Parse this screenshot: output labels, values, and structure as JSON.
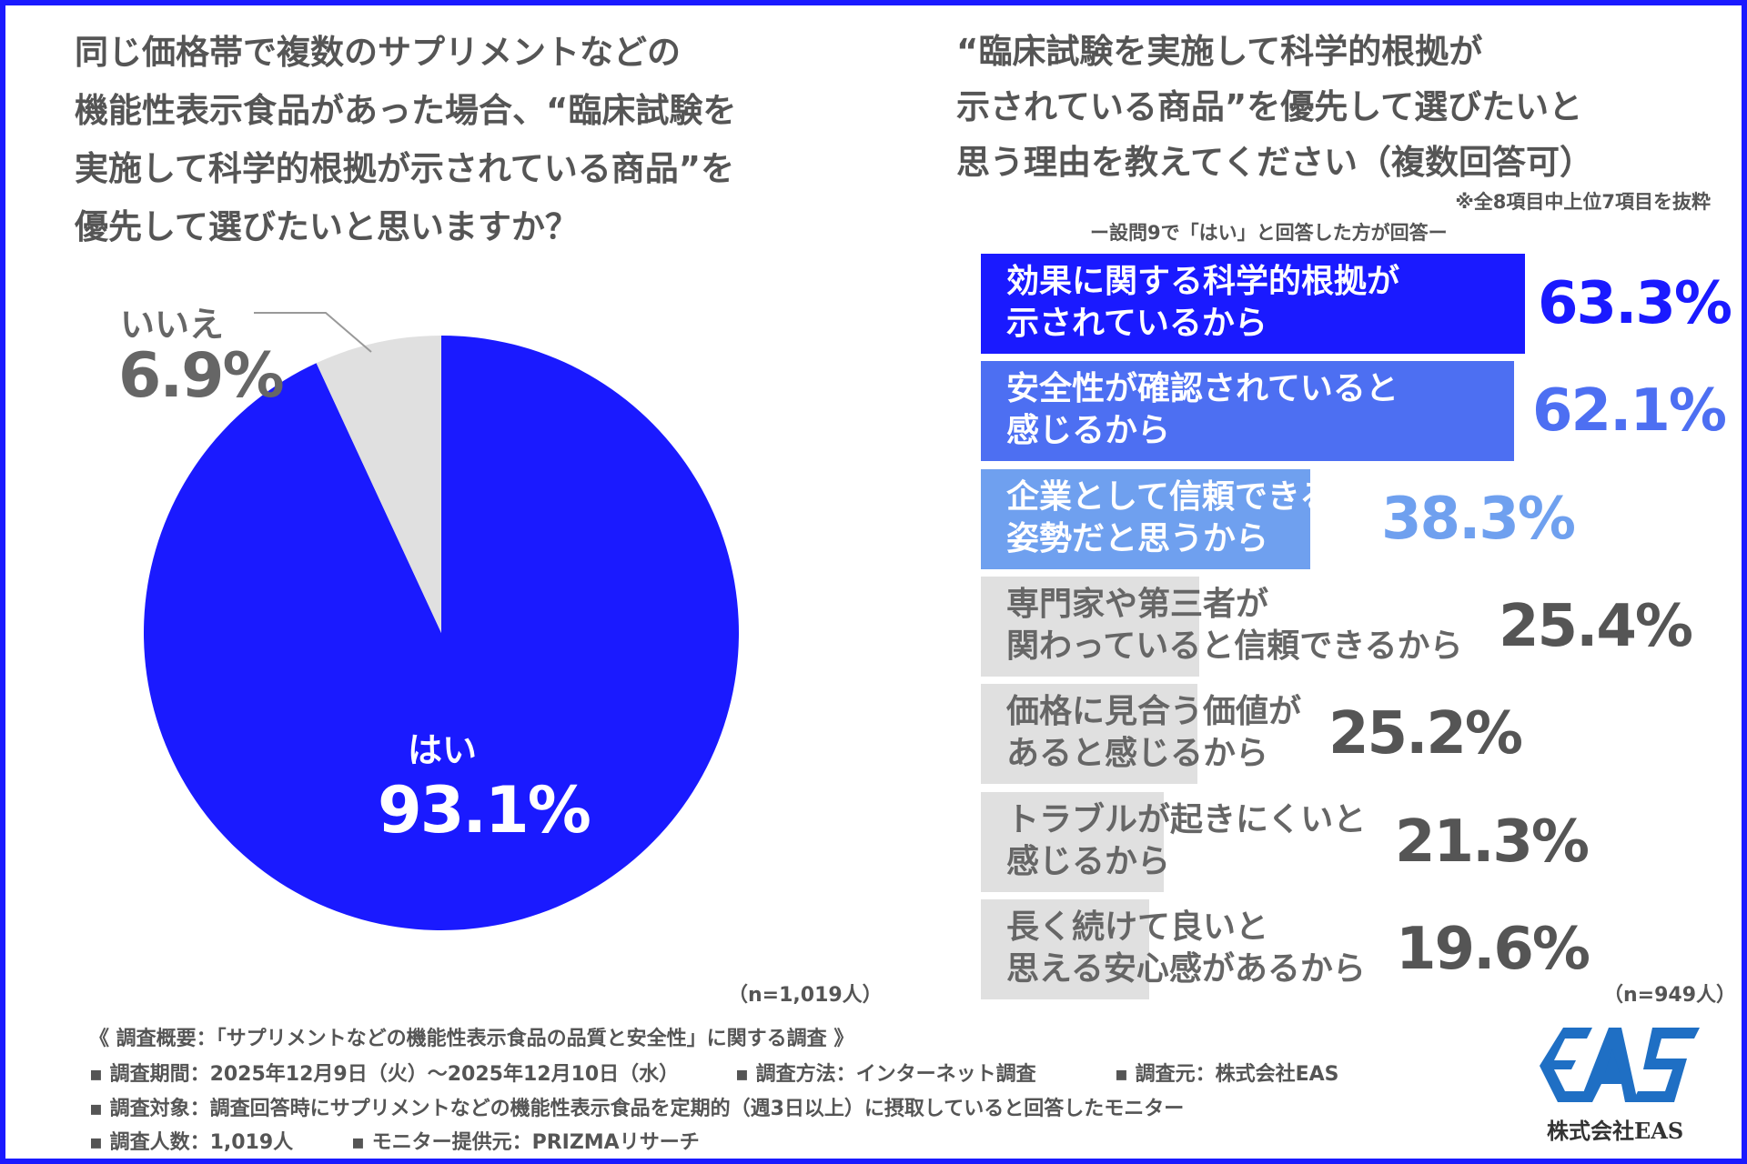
{
  "left_title": [
    "同じ価格帯で複数のサプリメントなどの",
    "機能性表示食品があった場合、“臨床試験を",
    "実施して科学的根拠が示されている商品”を",
    "優先して選びたいと思いますか？"
  ],
  "right_title": [
    "“臨床試験を実施して科学的根拠が",
    "示されている商品”を優先して選びたいと",
    "思う理由を教えてください（複数回答可）"
  ],
  "note": "※全8項目中上位7項目を抜粋",
  "subtitle": "ー設問9で「はい」と回答した方が回答ー",
  "colors": {
    "frame": "#1a1aff",
    "yes": "#1a1aff",
    "no": "#e0e0e0",
    "bar2": "#4d6ff2",
    "bar3": "#6fa0ef",
    "gray": "#e0e0e0",
    "logo": "#1f6fc4"
  },
  "chart_data": [
    {
      "type": "pie",
      "slices": [
        {
          "label": "はい",
          "value": 93.1,
          "display": "93.1%"
        },
        {
          "label": "いいえ",
          "value": 6.9,
          "display": "6.9%"
        }
      ],
      "n": "（n=1,019人）"
    },
    {
      "type": "bar",
      "orientation": "horizontal",
      "categories": [
        "効果に関する科学的根拠が\n示されているから",
        "安全性が確認されていると\n感じるから",
        "企業として信頼できる\n姿勢だと思うから",
        "専門家や第三者が\n関わっていると信頼できるから",
        "価格に見合う価値が\nあると感じるから",
        "トラブルが起きにくいと\n感じるから",
        "長く続けて良いと\n思える安心感があるから"
      ],
      "values": [
        63.3,
        62.1,
        38.3,
        25.4,
        25.2,
        21.3,
        19.6
      ],
      "labels": [
        "63.3%",
        "62.1%",
        "38.3%",
        "25.4%",
        "25.2%",
        "21.3%",
        "19.6%"
      ],
      "n": "（n=949人）"
    }
  ],
  "footer": {
    "overview": "《 調査概要：「サプリメントなどの機能性表示食品の品質と安全性」に関する調査 》",
    "period": "▪ 調査期間：2025年12月9日（火）～2025年12月10日（水）",
    "method": "▪ 調査方法：インターネット調査",
    "source": "▪ 調査元：株式会社EAS",
    "target": "▪ 調査対象：調査回答時にサプリメントなどの機能性表示食品を定期的（週3日以上）に摂取していると回答したモニター",
    "count": "▪ 調査人数：1,019人",
    "provider": "▪ モニター提供元：PRIZMAリサーチ"
  },
  "logo": {
    "mark": "EAS",
    "company": "株式会社EAS"
  }
}
